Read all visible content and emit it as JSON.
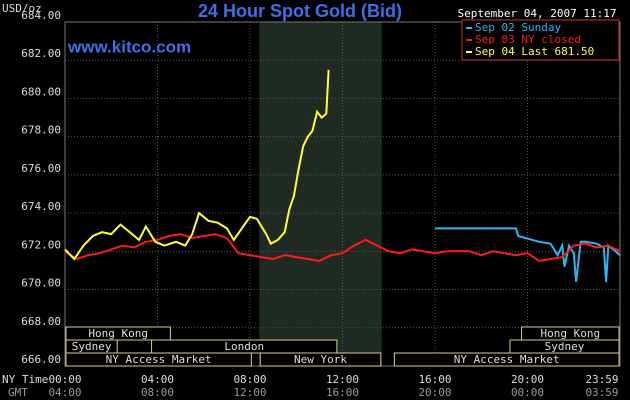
{
  "chart_data": {
    "type": "line",
    "title": "24 Hour Spot Gold (Bid)",
    "timestamp": "September 04, 2007 11:17",
    "y_unit": "USD/oz",
    "watermark": "www.kitco.com",
    "x_axis_label": "NY Time",
    "x2_axis_label": "GMT",
    "xlim": [
      0,
      24
    ],
    "ylim": [
      666,
      684
    ],
    "yticks": [
      {
        "value": 666,
        "label": "666.00"
      },
      {
        "value": 668,
        "label": "668.00"
      },
      {
        "value": 670,
        "label": "670.00"
      },
      {
        "value": 672,
        "label": "672.00"
      },
      {
        "value": 674,
        "label": "674.00"
      },
      {
        "value": 676,
        "label": "676.00"
      },
      {
        "value": 678,
        "label": "678.00"
      },
      {
        "value": 680,
        "label": "680.00"
      },
      {
        "value": 682,
        "label": "682.00"
      },
      {
        "value": 684,
        "label": "684.00"
      }
    ],
    "xticks": [
      {
        "value": 0,
        "label": "00:00"
      },
      {
        "value": 4,
        "label": "04:00"
      },
      {
        "value": 8,
        "label": "08:00"
      },
      {
        "value": 12,
        "label": "12:00"
      },
      {
        "value": 16,
        "label": "16:00"
      },
      {
        "value": 20,
        "label": "20:00"
      },
      {
        "value": 23.983,
        "label": "23:59"
      }
    ],
    "x2ticks": [
      {
        "value": 0,
        "label": "04:00"
      },
      {
        "value": 4,
        "label": "08:00"
      },
      {
        "value": 8,
        "label": "12:00"
      },
      {
        "value": 12,
        "label": "16:00"
      },
      {
        "value": 16,
        "label": "20:00"
      },
      {
        "value": 20,
        "label": "00:00"
      },
      {
        "value": 23.983,
        "label": "03:59"
      }
    ],
    "grid": true,
    "shaded_range": [
      8.4,
      13.7
    ],
    "sessions": [
      {
        "label": "Hong Kong",
        "start": 0,
        "end": 4.6,
        "row": 0
      },
      {
        "label": "Hong Kong",
        "start": 19.7,
        "end": 24,
        "row": 0
      },
      {
        "label": "Sydney",
        "start": 0,
        "end": 2.3,
        "row": 1
      },
      {
        "label": "London",
        "start": 3.7,
        "end": 11.8,
        "row": 1
      },
      {
        "label": "Sydney",
        "start": 19.2,
        "end": 24,
        "row": 1
      },
      {
        "label": "NY Access Market",
        "start": 0,
        "end": 8.1,
        "row": 2
      },
      {
        "label": "New York",
        "start": 8.4,
        "end": 13.7,
        "row": 2
      },
      {
        "label": "NY Access Market",
        "start": 14.2,
        "end": 24,
        "row": 2
      }
    ],
    "legend": "top-right",
    "series": [
      {
        "name": "Sep 02 Sunday",
        "color": "#29b6f6",
        "x": [
          16,
          17,
          18,
          19,
          19.5,
          19.6,
          20.5,
          21,
          21.3,
          21.5,
          21.6,
          21.8,
          22,
          22.1,
          22.3,
          22.5,
          23,
          23.3,
          23.4,
          23.5,
          23.7,
          24
        ],
        "values": [
          673.2,
          673.2,
          673.2,
          673.2,
          673.2,
          672.8,
          672.5,
          672.4,
          671.8,
          672.3,
          671.2,
          672.3,
          671.9,
          670.4,
          672.5,
          672.5,
          672.4,
          672.2,
          670.4,
          672.3,
          672.1,
          671.8
        ]
      },
      {
        "name": "Sep 03 NY closed",
        "color": "#ff1a1a",
        "x": [
          0,
          0.5,
          1,
          1.5,
          2,
          2.5,
          3,
          3.5,
          4,
          4.5,
          5,
          5.5,
          6,
          6.5,
          7,
          7.5,
          8,
          8.5,
          9,
          9.5,
          10,
          10.5,
          11,
          11.5,
          12,
          12.5,
          13,
          13.5,
          14,
          14.5,
          15,
          15.5,
          16,
          16.5,
          17,
          17.5,
          18,
          18.5,
          19,
          19.5,
          20,
          20.5,
          21,
          21.5,
          22,
          22.5,
          23,
          23.5,
          24
        ],
        "values": [
          672.0,
          671.6,
          671.8,
          671.9,
          672.1,
          672.3,
          672.2,
          672.5,
          672.6,
          672.8,
          672.9,
          672.7,
          672.8,
          672.9,
          672.7,
          671.9,
          671.8,
          671.7,
          671.6,
          671.8,
          671.7,
          671.6,
          671.5,
          671.8,
          671.9,
          672.3,
          672.6,
          672.3,
          672.0,
          671.9,
          672.1,
          672.0,
          671.9,
          672.0,
          672.0,
          672.0,
          671.8,
          672.0,
          671.9,
          671.8,
          671.9,
          671.5,
          671.6,
          671.7,
          672.3,
          672.4,
          672.2,
          672.3,
          672.0
        ]
      },
      {
        "name": "Sep 04 Last 681.50",
        "color": "#ffff33",
        "x": [
          0,
          0.4,
          0.8,
          1.2,
          1.6,
          2.0,
          2.4,
          2.8,
          3.2,
          3.5,
          3.9,
          4.3,
          4.8,
          5.2,
          5.5,
          5.8,
          6.2,
          6.6,
          7.0,
          7.3,
          7.7,
          8.0,
          8.3,
          8.7,
          8.9,
          9.2,
          9.5,
          9.7,
          9.9,
          10.1,
          10.3,
          10.5,
          10.7,
          10.9,
          11.1,
          11.3,
          11.4
        ],
        "values": [
          672.1,
          671.6,
          672.3,
          672.8,
          673.0,
          672.9,
          673.4,
          673.0,
          672.6,
          673.3,
          672.5,
          672.3,
          672.5,
          672.3,
          672.9,
          674.0,
          673.6,
          673.5,
          673.2,
          672.6,
          673.3,
          673.8,
          673.7,
          672.9,
          672.4,
          672.6,
          673.0,
          674.2,
          674.9,
          676.3,
          677.5,
          678.0,
          678.3,
          679.3,
          679.0,
          679.2,
          681.5
        ]
      }
    ]
  }
}
